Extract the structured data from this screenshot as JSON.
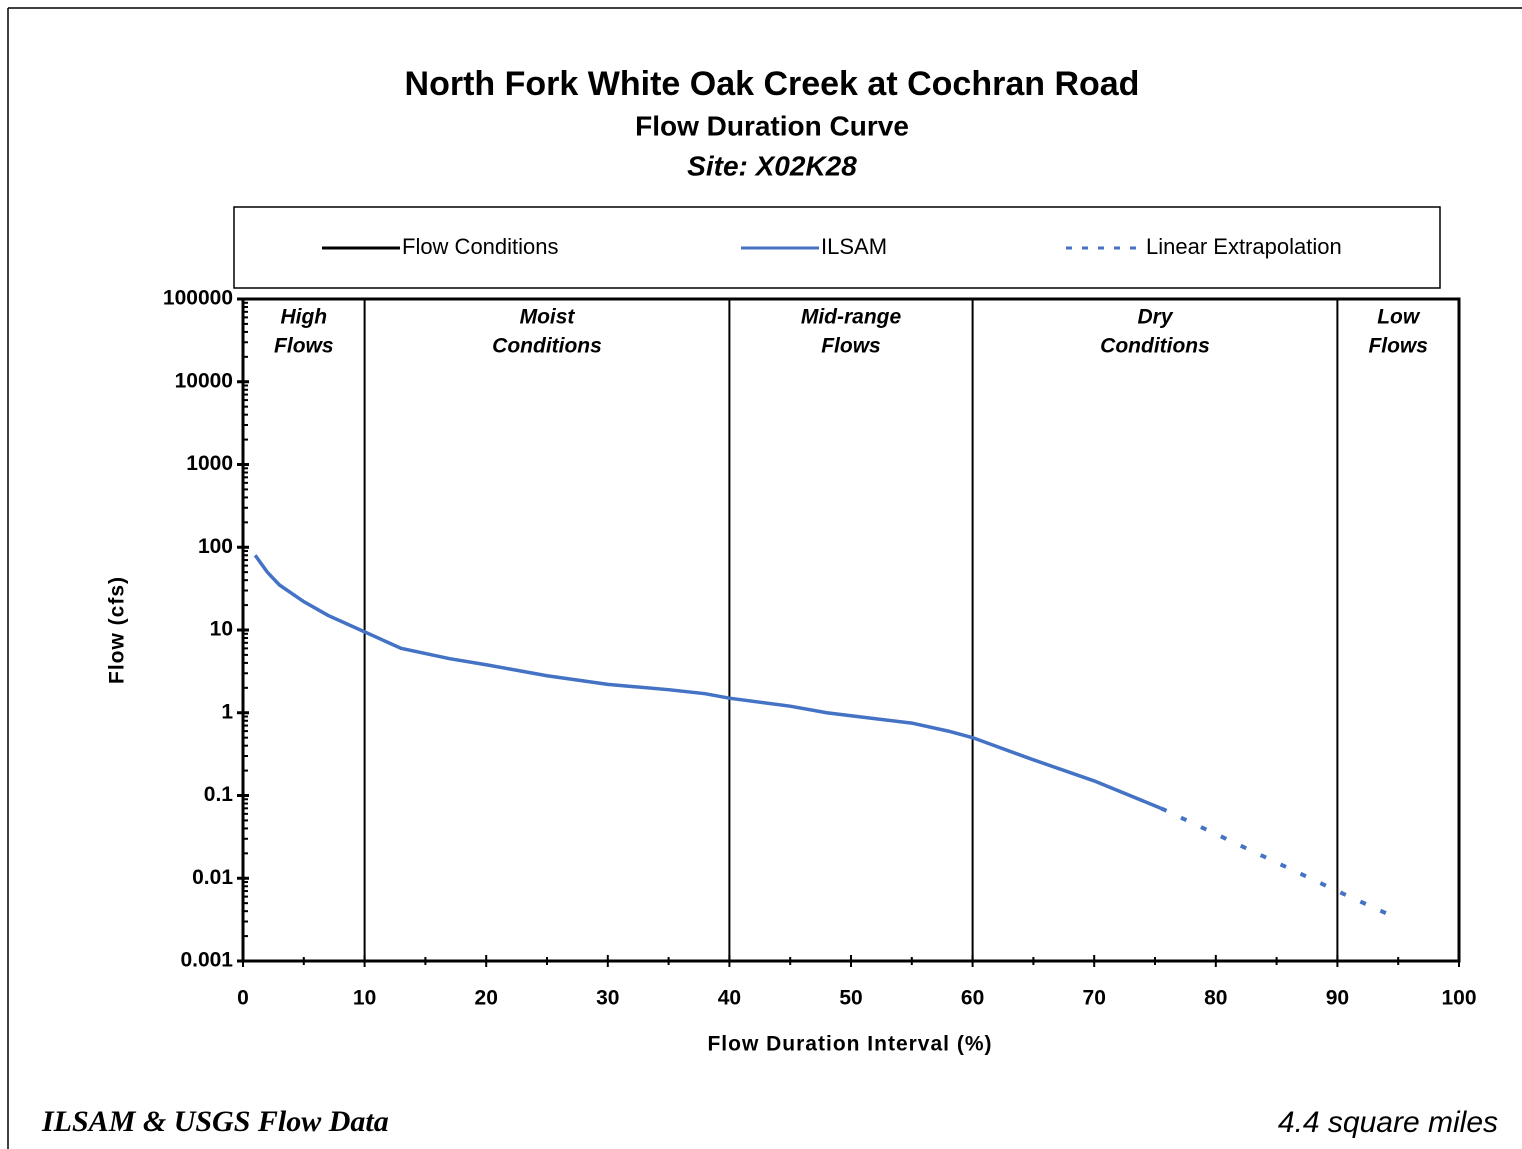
{
  "chart_data": {
    "type": "line",
    "title": "North Fork White Oak Creek at Cochran Road",
    "subtitle": "Flow Duration Curve",
    "site": "Site:  X02K28",
    "xlabel": "Flow Duration Interval (%)",
    "ylabel": "Flow (cfs)",
    "xlim": [
      0,
      100
    ],
    "xticks": [
      0,
      10,
      20,
      30,
      40,
      50,
      60,
      70,
      80,
      90,
      100
    ],
    "ylim": [
      0.001,
      100000
    ],
    "yticks": [
      0.001,
      0.01,
      0.1,
      1,
      10,
      100,
      1000,
      10000,
      100000
    ],
    "log_y": true,
    "zones": {
      "name": "Flow Conditions",
      "color": "#000000",
      "boundaries": [
        10,
        40,
        60,
        90
      ],
      "labels": [
        [
          "High",
          "Flows"
        ],
        [
          "Moist",
          "Conditions"
        ],
        [
          "Mid-range",
          "Flows"
        ],
        [
          "Dry",
          "Conditions"
        ],
        [
          "Low",
          "Flows"
        ]
      ]
    },
    "series": [
      {
        "name": "ILSAM",
        "color": "#4472c4",
        "dashed": false,
        "x": [
          1,
          2,
          3,
          5,
          7,
          10,
          13,
          17,
          20,
          25,
          30,
          35,
          38,
          40,
          45,
          48,
          50,
          55,
          58,
          60,
          65,
          70,
          75.5
        ],
        "values": [
          80,
          50,
          35,
          22,
          15,
          9.5,
          6,
          4.5,
          3.8,
          2.8,
          2.2,
          1.9,
          1.7,
          1.5,
          1.2,
          1.0,
          0.92,
          0.75,
          0.6,
          0.5,
          0.27,
          0.15,
          0.07
        ]
      },
      {
        "name": "Linear Extrapolation",
        "color": "#4472c4",
        "dashed": true,
        "x": [
          75.5,
          90,
          94.5
        ],
        "values": [
          0.07,
          0.007,
          0.0035
        ]
      }
    ],
    "notes": {
      "source": "ILSAM & USGS Flow Data",
      "area": "4.4 square miles"
    }
  }
}
